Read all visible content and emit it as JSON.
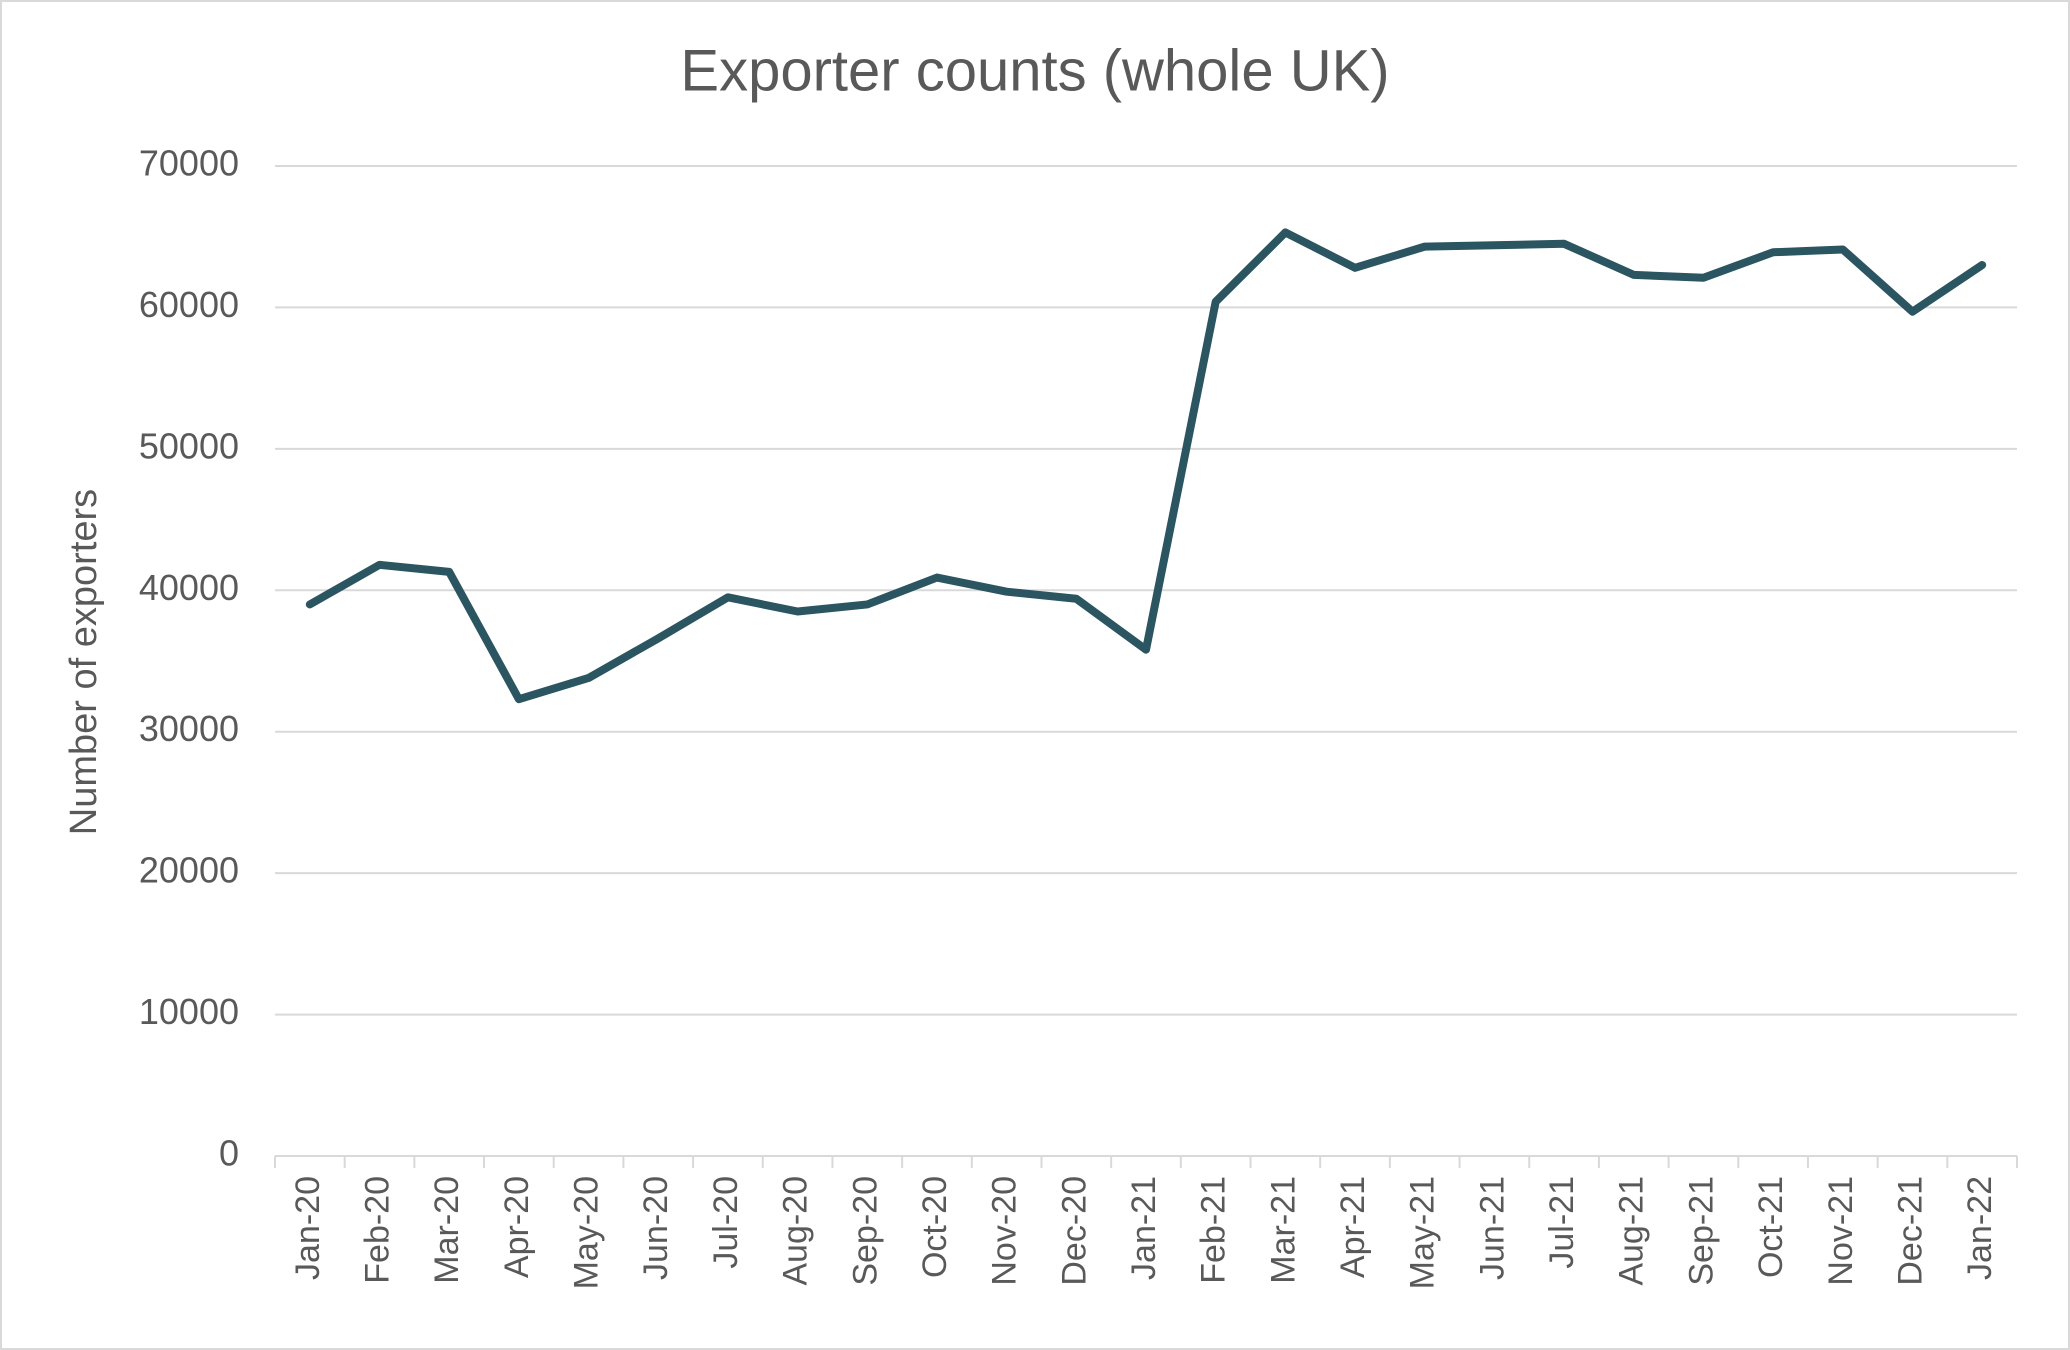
{
  "chart_data": {
    "type": "line",
    "title": "Exporter counts (whole UK)",
    "y_label": "Number of exporters",
    "categories": [
      "Jan-20",
      "Feb-20",
      "Mar-20",
      "Apr-20",
      "May-20",
      "Jun-20",
      "Jul-20",
      "Aug-20",
      "Sep-20",
      "Oct-20",
      "Nov-20",
      "Dec-20",
      "Jan-21",
      "Feb-21",
      "Mar-21",
      "Apr-21",
      "May-21",
      "Jun-21",
      "Jul-21",
      "Aug-21",
      "Sep-21",
      "Oct-21",
      "Nov-21",
      "Dec-21",
      "Jan-22"
    ],
    "values": [
      39000,
      41800,
      41300,
      32300,
      33800,
      36600,
      39500,
      38500,
      39000,
      40900,
      39900,
      39400,
      35800,
      60400,
      65300,
      62800,
      64300,
      64400,
      64500,
      62300,
      62100,
      63900,
      64100,
      59700,
      63000
    ],
    "color": "#2a5561",
    "ylim": [
      0,
      70000
    ],
    "yticks": [
      0,
      10000,
      20000,
      30000,
      40000,
      50000,
      60000,
      70000
    ],
    "grid": true
  }
}
